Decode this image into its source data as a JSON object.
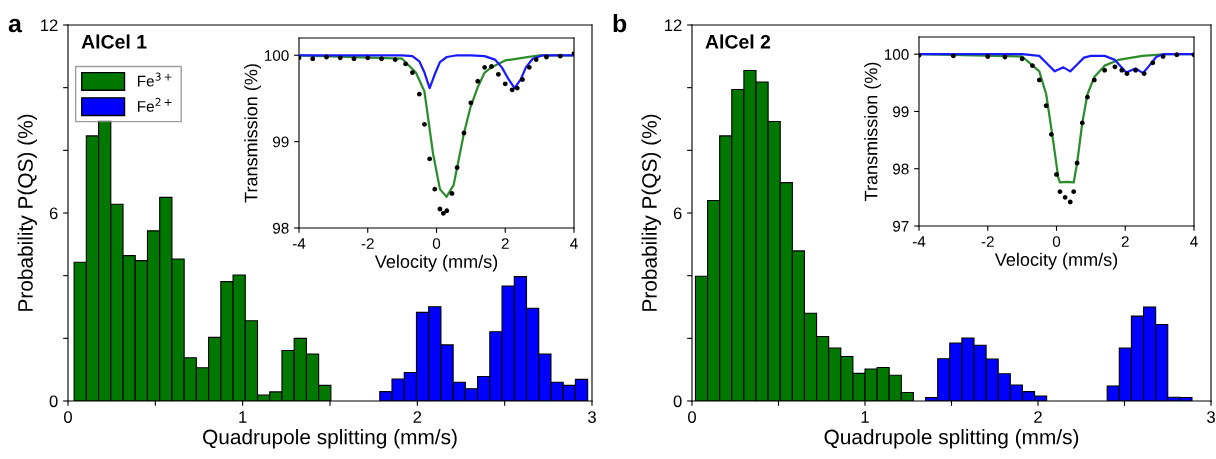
{
  "chart_data": [
    {
      "type": "histogram",
      "title": "AlCel 1",
      "annotations": [
        "a"
      ],
      "xlabel": "Quadrupole splitting (mm/s)",
      "ylabel": "Probability P(QS) (%)",
      "bins": [
        0.035,
        0.105,
        0.175,
        0.245,
        0.315,
        0.385,
        0.455,
        0.525,
        0.595,
        0.665,
        0.735,
        0.805,
        0.875,
        0.945,
        1.015,
        1.085,
        1.155,
        1.225,
        1.295,
        1.365,
        1.435,
        1.505,
        1.575,
        1.645,
        1.715,
        1.785,
        1.855,
        1.925,
        1.995,
        2.065,
        2.135,
        2.205,
        2.275,
        2.345,
        2.415,
        2.485,
        2.555,
        2.625,
        2.695,
        2.765,
        2.835,
        2.905,
        2.975
      ],
      "series": [
        {
          "name": "Fe$^{3+}$",
          "color": "#007800",
          "values": [
            4.43,
            8.46,
            8.95,
            6.28,
            4.64,
            4.48,
            5.43,
            6.5,
            4.53,
            1.38,
            1.06,
            2.03,
            3.81,
            4.02,
            2.56,
            0.19,
            0.29,
            1.61,
            2.0,
            1.5,
            0.5,
            null,
            null,
            null,
            null,
            null,
            null,
            null,
            null,
            null,
            null,
            null,
            null,
            null,
            null,
            null,
            null,
            null,
            null,
            null,
            null,
            null
          ]
        },
        {
          "name": "Fe$^{2+}$",
          "color": "#0000ff",
          "values": [
            null,
            null,
            null,
            null,
            null,
            null,
            null,
            null,
            null,
            null,
            null,
            null,
            null,
            null,
            null,
            null,
            null,
            null,
            null,
            null,
            null,
            null,
            null,
            null,
            null,
            0.3,
            0.7,
            0.91,
            2.83,
            3.01,
            1.79,
            0.6,
            0.39,
            0.78,
            2.21,
            3.67,
            3.97,
            2.96,
            1.5,
            0.6,
            0.5,
            0.69
          ]
        }
      ],
      "xlim": [
        0,
        3
      ],
      "xticks": [
        0,
        {
          "value": 0.5,
          "label": null
        },
        1,
        {
          "value": 1.5,
          "label": null
        },
        2,
        {
          "value": 2.5,
          "label": null
        },
        3
      ],
      "ylim": [
        0,
        12
      ],
      "yticks": [
        0,
        {
          "value": 2,
          "label": null
        },
        {
          "value": 4,
          "label": null
        },
        6,
        {
          "value": 8,
          "label": null
        },
        {
          "value": 10,
          "label": null
        },
        12
      ],
      "legend": "top left"
    },
    {
      "type": "scatter",
      "xlabel": "Velocity (mm/s)",
      "ylabel": "Transmission (%)",
      "series": [
        {
          "type": "scatter",
          "color": "#000000",
          "x": [
            -4,
            -3.6,
            -3.2,
            -2.8,
            -2.4,
            -2.0,
            -1.6,
            -1.2,
            -0.9,
            -0.7,
            -0.5,
            -0.35,
            -0.2,
            -0.05,
            0.1,
            0.2,
            0.3,
            0.45,
            0.6,
            0.8,
            1.0,
            1.2,
            1.4,
            1.6,
            1.8,
            2.0,
            2.2,
            2.35,
            2.5,
            2.7,
            2.9,
            3.2,
            3.6,
            4.0
          ],
          "values": [
            99.97,
            99.96,
            99.98,
            99.97,
            99.96,
            99.97,
            99.96,
            99.95,
            99.9,
            99.8,
            99.55,
            99.2,
            98.8,
            98.45,
            98.22,
            98.17,
            98.2,
            98.4,
            98.7,
            99.1,
            99.45,
            99.7,
            99.86,
            99.87,
            99.78,
            99.67,
            99.6,
            99.62,
            99.72,
            99.86,
            99.95,
            99.98,
            99.99,
            100.02
          ]
        },
        {
          "type": "line",
          "color": "#2a8c2a",
          "x": [
            -4,
            -1,
            -0.6,
            -0.35,
            -0.1,
            0.1,
            0.29,
            0.5,
            0.8,
            0.99,
            1.2,
            1.4,
            1.6,
            2.0,
            2.5,
            3.0,
            4.0
          ],
          "values": [
            100,
            99.96,
            99.8,
            99.58,
            98.86,
            98.45,
            98.36,
            98.5,
            99.1,
            99.4,
            99.63,
            99.8,
            99.86,
            99.94,
            99.97,
            100,
            100
          ]
        },
        {
          "type": "line",
          "color": "#1a1aff",
          "x": [
            -4,
            -1,
            -0.7,
            -0.5,
            -0.35,
            -0.2,
            -0.05,
            0.1,
            0.3,
            0.6,
            1,
            1.4,
            1.7,
            1.9,
            2.1,
            2.27,
            2.45,
            2.6,
            2.8,
            3.1,
            4
          ],
          "values": [
            100,
            100,
            99.99,
            99.93,
            99.8,
            99.62,
            99.78,
            99.92,
            99.98,
            100,
            100,
            99.99,
            99.95,
            99.86,
            99.72,
            99.62,
            99.72,
            99.86,
            99.96,
            100,
            100
          ]
        }
      ],
      "xlim": [
        -4,
        4
      ],
      "xticks": [
        -4,
        -2,
        0,
        2,
        4
      ],
      "ylim": [
        98,
        100.2
      ],
      "yticks": [
        98,
        99,
        100
      ]
    },
    {
      "type": "histogram",
      "title": "AlCel 2",
      "annotations": [
        "b"
      ],
      "xlabel": "Quadrupole splitting (mm/s)",
      "ylabel": "Probability P(QS) (%)",
      "bins": [
        0.02,
        0.09,
        0.16,
        0.23,
        0.3,
        0.37,
        0.44,
        0.51,
        0.58,
        0.65,
        0.72,
        0.79,
        0.86,
        0.93,
        1.0,
        1.07,
        1.14,
        1.21,
        1.28,
        1.35,
        1.42,
        1.49,
        1.56,
        1.63,
        1.7,
        1.77,
        1.84,
        1.91,
        1.98,
        2.05,
        2.12,
        2.19,
        2.26,
        2.33,
        2.4,
        2.47,
        2.54,
        2.61,
        2.68,
        2.75,
        2.82,
        2.89
      ],
      "series": [
        {
          "color": "#007800",
          "values": [
            3.98,
            6.4,
            8.46,
            9.94,
            10.55,
            10.18,
            8.92,
            6.97,
            4.79,
            2.8,
            2.06,
            1.69,
            1.42,
            0.88,
            1.02,
            1.07,
            0.82,
            0.27,
            null,
            null,
            null,
            null,
            null,
            null,
            null,
            null,
            null,
            null,
            null,
            null,
            null,
            null,
            null,
            null,
            null,
            null,
            null,
            null,
            null,
            null,
            null
          ]
        },
        {
          "color": "#0000ff",
          "values": [
            null,
            null,
            null,
            null,
            null,
            null,
            null,
            null,
            null,
            null,
            null,
            null,
            null,
            null,
            null,
            null,
            null,
            null,
            null,
            0.11,
            1.35,
            1.85,
            2.01,
            1.78,
            1.34,
            0.87,
            0.51,
            0.3,
            0.16,
            null,
            null,
            null,
            null,
            null,
            0.48,
            1.69,
            2.71,
            3.0,
            2.44,
            0.12,
            0.11
          ]
        }
      ],
      "xlim": [
        0,
        3
      ],
      "xticks": [
        0,
        {
          "value": 0.5,
          "label": null
        },
        1,
        {
          "value": 1.5,
          "label": null
        },
        2,
        {
          "value": 2.5,
          "label": null
        },
        3
      ],
      "ylim": [
        0,
        12
      ],
      "yticks": [
        0,
        {
          "value": 2,
          "label": null
        },
        {
          "value": 4,
          "label": null
        },
        6,
        {
          "value": 8,
          "label": null
        },
        {
          "value": 10,
          "label": null
        },
        12
      ]
    },
    {
      "type": "scatter",
      "xlabel": "Velocity (mm/s)",
      "ylabel": "Transmission (%)",
      "series": [
        {
          "type": "scatter",
          "color": "#000000",
          "x": [
            -4,
            -3,
            -2,
            -1.5,
            -1,
            -0.7,
            -0.5,
            -0.3,
            -0.15,
            0,
            0.1,
            0.25,
            0.4,
            0.5,
            0.6,
            0.75,
            0.9,
            1.1,
            1.4,
            1.7,
            1.9,
            2.05,
            2.3,
            2.55,
            2.8,
            3.1,
            3.5,
            4
          ],
          "values": [
            99.98,
            99.97,
            99.96,
            99.95,
            99.92,
            99.8,
            99.55,
            99.1,
            98.6,
            97.9,
            97.6,
            97.5,
            97.42,
            97.6,
            98.1,
            98.8,
            99.25,
            99.55,
            99.72,
            99.78,
            99.72,
            99.66,
            99.72,
            99.66,
            99.85,
            99.96,
            99.99,
            99.99
          ]
        },
        {
          "type": "line",
          "color": "#2a8c2a",
          "x": [
            -4,
            -1,
            -0.5,
            -0.3,
            -0.1,
            0.05,
            0.1,
            0.3,
            0.5,
            0.6,
            0.75,
            0.9,
            1.1,
            1.4,
            1.8,
            2.5,
            3.2,
            4
          ],
          "values": [
            100,
            99.96,
            99.7,
            99.3,
            98.5,
            97.85,
            97.76,
            97.77,
            97.76,
            98.1,
            98.8,
            99.3,
            99.6,
            99.8,
            99.9,
            99.97,
            100,
            100
          ]
        },
        {
          "type": "line",
          "color": "#1a1aff",
          "x": [
            -4,
            -1,
            -0.5,
            -0.3,
            -0.05,
            0.2,
            0.4,
            0.6,
            0.8,
            1.0,
            1.4,
            1.7,
            1.85,
            2.03,
            2.3,
            2.52,
            2.7,
            2.9,
            3.1,
            4
          ],
          "values": [
            100,
            100,
            99.97,
            99.85,
            99.7,
            99.77,
            99.7,
            99.82,
            99.94,
            99.97,
            99.97,
            99.9,
            99.8,
            99.68,
            99.75,
            99.67,
            99.8,
            99.95,
            100,
            100
          ]
        }
      ],
      "xlim": [
        -4,
        4
      ],
      "xticks": [
        -4,
        -2,
        0,
        2,
        4
      ],
      "ylim": [
        97,
        100.3
      ],
      "yticks": [
        97,
        98,
        99,
        100
      ]
    }
  ]
}
